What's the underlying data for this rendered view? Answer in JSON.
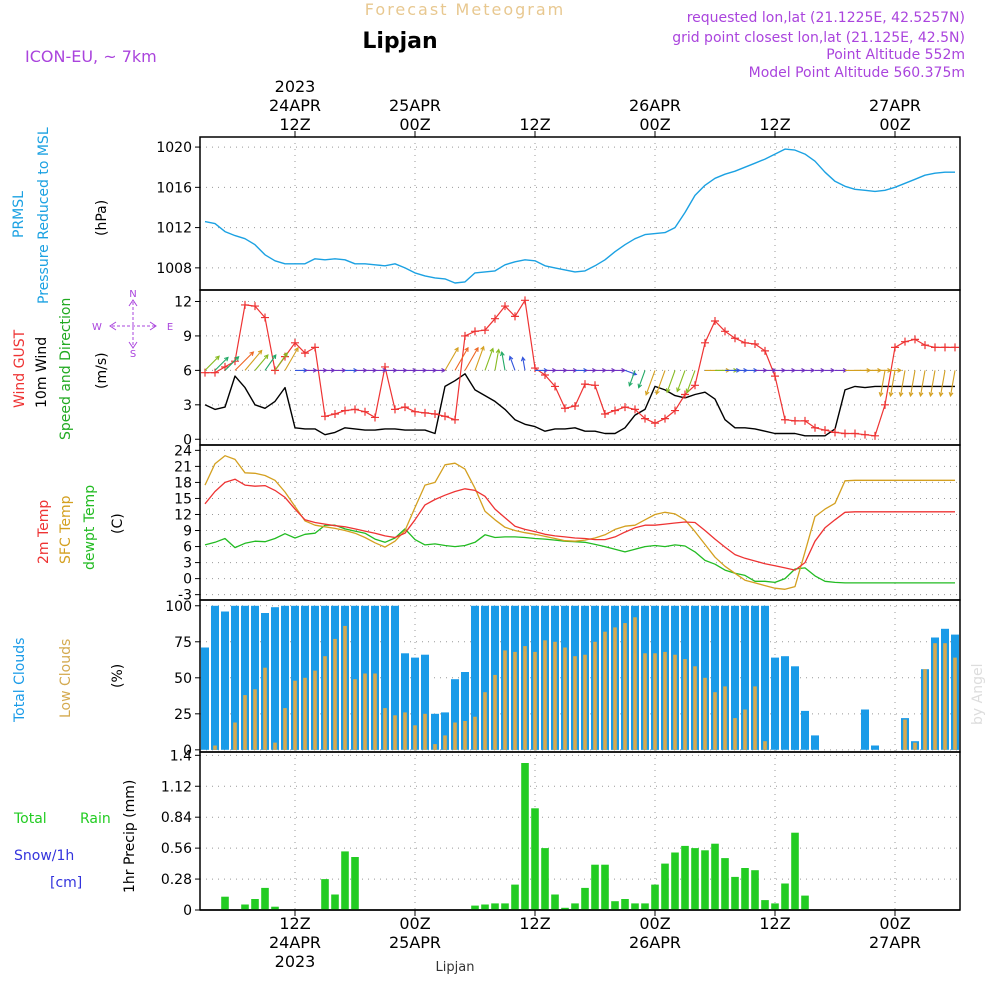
{
  "header": {
    "product": "Forecast Meteogram",
    "location": "Lipjan",
    "model": "ICON-EU, ~ 7km",
    "requested": "requested lon,lat (21.1225E, 42.5257N)",
    "gridpoint": "grid point closest lon,lat (21.125E, 42.5N)",
    "point_alt": "Point Altitude 552m",
    "model_alt": "Model Point Altitude 560.375m",
    "footer_location": "Lipjan",
    "credit": "by Angel"
  },
  "colors": {
    "pressure": "#1ba1e2",
    "gust": "#ee3333",
    "wind": "#000000",
    "dir": "#22aa22",
    "temp": "#ee3333",
    "sfc": "#d4a020",
    "dew": "#22bb22",
    "total_clouds": "#1a9be8",
    "low_clouds": "#d4aa50",
    "rain": "#22cc22",
    "snow": "#3333dd",
    "magenta": "#aa44dd"
  },
  "time_axis": {
    "top_labels": [
      {
        "line1": "2023",
        "line2": "24APR",
        "line3": "12Z"
      },
      {
        "line1": "",
        "line2": "25APR",
        "line3": "00Z"
      },
      {
        "line1": "",
        "line2": "",
        "line3": "12Z"
      },
      {
        "line1": "",
        "line2": "26APR",
        "line3": "00Z"
      },
      {
        "line1": "",
        "line2": "",
        "line3": "12Z"
      },
      {
        "line1": "",
        "line2": "27APR",
        "line3": "00Z"
      }
    ],
    "bottom_labels": [
      {
        "line1": "12Z",
        "line2": "24APR",
        "line3": "2023"
      },
      {
        "line1": "00Z",
        "line2": "25APR",
        "line3": ""
      },
      {
        "line1": "12Z",
        "line2": "",
        "line3": ""
      },
      {
        "line1": "00Z",
        "line2": "26APR",
        "line3": ""
      },
      {
        "line1": "12Z",
        "line2": "",
        "line3": ""
      },
      {
        "line1": "00Z",
        "line2": "27APR",
        "line3": ""
      }
    ],
    "tick_hours": [
      9,
      21,
      33,
      45,
      57,
      69
    ],
    "hours_total": 76
  },
  "panels": {
    "pressure": {
      "ylabel_main": "PRMSL",
      "ylabel_sub": "Pressure Reduced to MSL",
      "unit": "(hPa)",
      "yticks": [
        "1008",
        "1012",
        "1016",
        "1020"
      ]
    },
    "wind": {
      "ylabel_a": "Wind GUST",
      "ylabel_b": "10m Wind",
      "ylabel_c": "Speed and Direction",
      "unit": "(m/s)",
      "yticks": [
        "0",
        "3",
        "6",
        "9",
        "12"
      ],
      "compass_n": "N",
      "compass_w": "W",
      "compass_e": "E",
      "compass_s": "S"
    },
    "temperature": {
      "ylabel_a": "2m Temp",
      "ylabel_b": "SFC Temp",
      "ylabel_c": "dewpt Temp",
      "unit": "(C)",
      "yticks": [
        "-3",
        "0",
        "3",
        "6",
        "9",
        "12",
        "15",
        "18",
        "21",
        "24"
      ]
    },
    "clouds": {
      "ylabel_a": "Total Clouds",
      "ylabel_b": "Low Clouds",
      "unit": "(%)",
      "yticks": [
        "0",
        "25",
        "50",
        "75",
        "100"
      ]
    },
    "precip": {
      "label_total": "Total",
      "label_rain": "Rain",
      "label_snow": "Snow/1h",
      "label_cm": "[cm]",
      "unit": "1hr Precip (mm)",
      "yticks": [
        "0",
        "0.28",
        "0.56",
        "0.84",
        "1.12",
        "1.4"
      ]
    }
  },
  "chart_data": [
    {
      "type": "line",
      "title": "PRMSL Pressure Reduced to MSL",
      "ylabel": "hPa",
      "ylim": [
        1005.8,
        1021
      ],
      "x_hours": [
        0,
        1,
        2,
        3,
        4,
        5,
        6,
        7,
        8,
        9,
        10,
        11,
        12,
        13,
        14,
        15,
        16,
        17,
        18,
        19,
        20,
        21,
        22,
        23,
        24,
        25,
        26,
        27,
        28,
        29,
        30,
        31,
        32,
        33,
        34,
        35,
        36,
        37,
        38,
        39,
        40,
        41,
        42,
        43,
        44,
        45,
        46,
        47,
        48,
        49,
        50,
        51,
        52,
        53,
        54,
        55,
        56,
        57,
        58,
        59,
        60,
        61,
        62,
        63,
        64,
        65,
        66,
        67,
        68,
        69,
        70,
        71,
        72,
        73,
        74,
        75
      ],
      "values": [
        1012.6,
        1012.4,
        1011.6,
        1011.2,
        1010.9,
        1010.3,
        1009.3,
        1008.7,
        1008.4,
        1008.4,
        1008.4,
        1008.9,
        1008.8,
        1008.9,
        1008.8,
        1008.4,
        1008.4,
        1008.3,
        1008.2,
        1008.4,
        1008.0,
        1007.5,
        1007.2,
        1007.0,
        1006.9,
        1006.5,
        1006.6,
        1007.5,
        1007.6,
        1007.7,
        1008.3,
        1008.6,
        1008.8,
        1008.7,
        1008.2,
        1008.0,
        1007.8,
        1007.6,
        1007.7,
        1008.2,
        1008.8,
        1009.6,
        1010.3,
        1010.9,
        1011.3,
        1011.4,
        1011.5,
        1012.0,
        1013.5,
        1015.2,
        1016.2,
        1016.9,
        1017.3,
        1017.6,
        1018.0,
        1018.4,
        1018.8,
        1019.3,
        1019.8,
        1019.7,
        1019.3,
        1018.6,
        1017.5,
        1016.6,
        1016.1,
        1015.8,
        1015.7,
        1015.6,
        1015.7,
        1016.0,
        1016.4,
        1016.8,
        1017.2,
        1017.4,
        1017.5,
        1017.5
      ]
    },
    {
      "type": "line",
      "title": "Wind GUST / 10m Wind",
      "ylabel": "m/s",
      "ylim": [
        -0.5,
        13
      ],
      "series": [
        {
          "name": "Wind GUST",
          "values": [
            5.8,
            5.8,
            6.3,
            6.8,
            11.7,
            11.6,
            10.6,
            6.0,
            7.2,
            8.4,
            7.5,
            8.0,
            2.0,
            2.2,
            2.5,
            2.6,
            2.4,
            1.9,
            6.3,
            2.6,
            2.8,
            2.4,
            2.3,
            2.2,
            2.0,
            1.7,
            9.0,
            9.4,
            9.5,
            10.5,
            11.6,
            10.7,
            12.1,
            6.2,
            5.6,
            4.6,
            2.7,
            2.9,
            4.8,
            4.7,
            2.2,
            2.5,
            2.8,
            2.6,
            1.8,
            1.4,
            1.8,
            2.5,
            3.9,
            4.7,
            8.4,
            10.3,
            9.4,
            8.8,
            8.4,
            8.3,
            7.7,
            5.5,
            1.7,
            1.6,
            1.6,
            1.0,
            0.8,
            0.6,
            0.5,
            0.5,
            0.4,
            0.3,
            3.0,
            8.0,
            8.5,
            8.7,
            8.2,
            8.0,
            8.0,
            8.0
          ]
        },
        {
          "name": "10m Wind",
          "values": [
            3.0,
            2.6,
            2.8,
            5.5,
            4.5,
            3.0,
            2.7,
            3.3,
            4.5,
            1.0,
            0.9,
            0.9,
            0.4,
            0.6,
            1.0,
            0.9,
            0.8,
            0.8,
            0.9,
            0.9,
            0.8,
            0.8,
            0.8,
            0.5,
            4.6,
            5.1,
            5.7,
            4.3,
            3.8,
            3.3,
            2.6,
            1.7,
            1.3,
            1.1,
            0.7,
            0.9,
            0.9,
            1.0,
            0.7,
            0.7,
            0.5,
            0.5,
            1.0,
            2.1,
            2.6,
            4.6,
            4.3,
            3.8,
            3.6,
            3.9,
            4.1,
            3.5,
            1.7,
            1.0,
            1.0,
            0.9,
            0.7,
            0.5,
            0.5,
            0.5,
            0.3,
            0.3,
            0.3,
            0.9,
            4.3,
            4.6,
            4.5,
            4.6,
            4.6,
            4.6,
            4.6,
            4.6,
            4.6,
            4.6,
            4.6,
            4.6
          ]
        }
      ],
      "direction_arrows_deg": [
        225,
        225,
        225,
        225,
        220,
        220,
        215,
        215,
        210,
        270,
        270,
        270,
        270,
        270,
        270,
        270,
        270,
        270,
        270,
        270,
        270,
        270,
        270,
        270,
        210,
        210,
        210,
        200,
        200,
        190,
        170,
        160,
        170,
        270,
        270,
        270,
        270,
        270,
        270,
        270,
        270,
        270,
        290,
        20,
        20,
        20,
        20,
        20,
        20,
        20,
        270,
        270,
        270,
        270,
        270,
        270,
        270,
        270,
        270,
        270,
        270,
        270,
        270,
        270,
        270,
        270,
        270,
        270,
        10,
        10,
        10,
        10,
        10,
        10,
        10,
        10
      ]
    },
    {
      "type": "line",
      "title": "Temperatures",
      "ylabel": "C",
      "ylim": [
        -4,
        25
      ],
      "series": [
        {
          "name": "2m Temp",
          "values": [
            14.0,
            16.3,
            18.0,
            18.6,
            17.5,
            17.3,
            17.4,
            16.5,
            15.2,
            13.0,
            11.0,
            10.5,
            10.2,
            9.9,
            9.7,
            9.3,
            8.9,
            8.5,
            8.0,
            7.7,
            8.5,
            11.0,
            13.8,
            14.8,
            15.6,
            16.3,
            16.8,
            16.5,
            15.4,
            13.0,
            11.4,
            9.8,
            9.2,
            8.8,
            8.3,
            8.0,
            7.8,
            7.6,
            7.5,
            7.3,
            7.3,
            7.8,
            8.7,
            9.5,
            10.0,
            10.0,
            10.2,
            10.4,
            10.6,
            10.5,
            9.0,
            7.4,
            5.9,
            4.5,
            3.8,
            3.3,
            2.8,
            2.4,
            2.0,
            1.6,
            3.0,
            7.0,
            9.5,
            11.0,
            12.4,
            12.5,
            12.5,
            12.5,
            12.5,
            12.5,
            12.5,
            12.5,
            12.5,
            12.5,
            12.5,
            12.5
          ]
        },
        {
          "name": "SFC Temp",
          "values": [
            17.5,
            21.5,
            23.0,
            22.3,
            19.8,
            19.7,
            19.3,
            18.4,
            16.2,
            13.5,
            10.8,
            10.0,
            9.7,
            9.4,
            9.0,
            8.5,
            7.7,
            6.7,
            5.9,
            7.0,
            9.0,
            13.3,
            17.5,
            18.0,
            21.3,
            21.6,
            20.5,
            16.9,
            12.6,
            11.0,
            9.6,
            9.0,
            8.6,
            8.3,
            7.9,
            7.5,
            7.1,
            7.0,
            7.2,
            7.6,
            8.2,
            9.2,
            9.8,
            10.0,
            11.0,
            12.0,
            12.4,
            12.1,
            11.0,
            8.8,
            6.4,
            4.0,
            2.3,
            1.0,
            -0.3,
            -0.8,
            -1.3,
            -1.8,
            -2.0,
            -1.5,
            5.0,
            11.6,
            13.0,
            14.1,
            18.3,
            18.4,
            18.4,
            18.4,
            18.4,
            18.4,
            18.4,
            18.4,
            18.4,
            18.4,
            18.4,
            18.4
          ]
        },
        {
          "name": "dewpt Temp",
          "values": [
            6.3,
            6.8,
            7.5,
            5.8,
            6.6,
            7.0,
            6.9,
            7.5,
            8.4,
            7.6,
            8.3,
            8.5,
            10.0,
            10.0,
            9.3,
            8.9,
            8.5,
            7.4,
            6.8,
            7.6,
            9.3,
            7.3,
            6.3,
            6.5,
            6.2,
            6.0,
            6.2,
            6.8,
            8.2,
            7.7,
            7.8,
            7.8,
            7.7,
            7.5,
            7.4,
            7.2,
            7.0,
            6.9,
            6.8,
            6.4,
            6.0,
            5.5,
            5.0,
            5.5,
            6.0,
            6.2,
            6.0,
            6.3,
            6.1,
            5.0,
            3.4,
            2.7,
            1.6,
            1.0,
            0.6,
            -0.5,
            -0.5,
            -0.7,
            0.0,
            1.8,
            2.0,
            0.5,
            -0.5,
            -0.7,
            -0.8,
            -0.8,
            -0.8,
            -0.8,
            -0.8,
            -0.8,
            -0.8,
            -0.8,
            -0.8,
            -0.8,
            -0.8,
            -0.8
          ]
        }
      ]
    },
    {
      "type": "bar",
      "title": "Total Clouds / Low Clouds",
      "ylabel": "%",
      "ylim": [
        0,
        100
      ],
      "series": [
        {
          "name": "Total Clouds",
          "values": [
            71,
            100,
            96,
            100,
            100,
            100,
            95,
            99,
            100,
            100,
            100,
            100,
            100,
            100,
            100,
            100,
            100,
            100,
            100,
            100,
            67,
            64,
            66,
            25,
            26,
            49,
            54,
            100,
            100,
            100,
            100,
            100,
            100,
            100,
            100,
            100,
            100,
            100,
            100,
            100,
            100,
            100,
            100,
            100,
            100,
            100,
            100,
            100,
            100,
            100,
            100,
            100,
            100,
            100,
            100,
            100,
            100,
            64,
            65,
            58,
            27,
            10,
            0,
            0,
            0,
            0,
            28,
            3,
            0,
            0,
            22,
            6,
            56,
            78,
            84,
            80
          ]
        },
        {
          "name": "Low Clouds",
          "values": [
            0,
            3,
            0,
            19,
            38,
            42,
            57,
            5,
            29,
            48,
            50,
            55,
            65,
            77,
            86,
            49,
            53,
            53,
            29,
            24,
            26,
            17,
            25,
            4,
            10,
            19,
            20,
            23,
            40,
            52,
            69,
            68,
            72,
            68,
            76,
            75,
            71,
            65,
            66,
            75,
            82,
            85,
            88,
            92,
            67,
            67,
            68,
            66,
            63,
            58,
            50,
            40,
            44,
            22,
            28,
            44,
            6,
            0,
            0,
            0,
            0,
            0,
            0,
            0,
            0,
            0,
            0,
            0,
            0,
            0,
            21,
            5,
            56,
            74,
            74,
            64
          ]
        }
      ]
    },
    {
      "type": "bar",
      "title": "1hr Precip",
      "ylabel": "mm",
      "ylim": [
        0,
        1.4
      ],
      "series": [
        {
          "name": "Total Rain",
          "values": [
            0,
            0,
            0.12,
            0,
            0.05,
            0.1,
            0.2,
            0.03,
            0,
            0,
            0,
            0,
            0.28,
            0.14,
            0.53,
            0.48,
            0,
            0,
            0,
            0,
            0,
            0,
            0,
            0,
            0,
            0,
            0,
            0.04,
            0.05,
            0.06,
            0.06,
            0.23,
            1.33,
            0.92,
            0.56,
            0.14,
            0.02,
            0.06,
            0.2,
            0.41,
            0.41,
            0.08,
            0.1,
            0.06,
            0.06,
            0.23,
            0.42,
            0.52,
            0.58,
            0.56,
            0.54,
            0.6,
            0.47,
            0.3,
            0.38,
            0.36,
            0.09,
            0.06,
            0.24,
            0.7,
            0.13,
            0,
            0,
            0,
            0,
            0,
            0,
            0,
            0,
            0,
            0,
            0,
            0,
            0,
            0,
            0
          ]
        },
        {
          "name": "Snow/1h",
          "values": [
            0,
            0,
            0,
            0,
            0,
            0,
            0,
            0,
            0,
            0,
            0,
            0,
            0,
            0,
            0,
            0,
            0,
            0,
            0,
            0,
            0,
            0,
            0,
            0,
            0,
            0,
            0,
            0,
            0,
            0,
            0,
            0,
            0,
            0,
            0,
            0,
            0,
            0,
            0,
            0,
            0,
            0,
            0,
            0,
            0,
            0,
            0,
            0,
            0,
            0,
            0,
            0,
            0,
            0,
            0,
            0,
            0,
            0,
            0,
            0,
            0,
            0,
            0,
            0,
            0,
            0,
            0,
            0,
            0,
            0,
            0,
            0,
            0,
            0,
            0,
            0
          ]
        }
      ]
    }
  ]
}
